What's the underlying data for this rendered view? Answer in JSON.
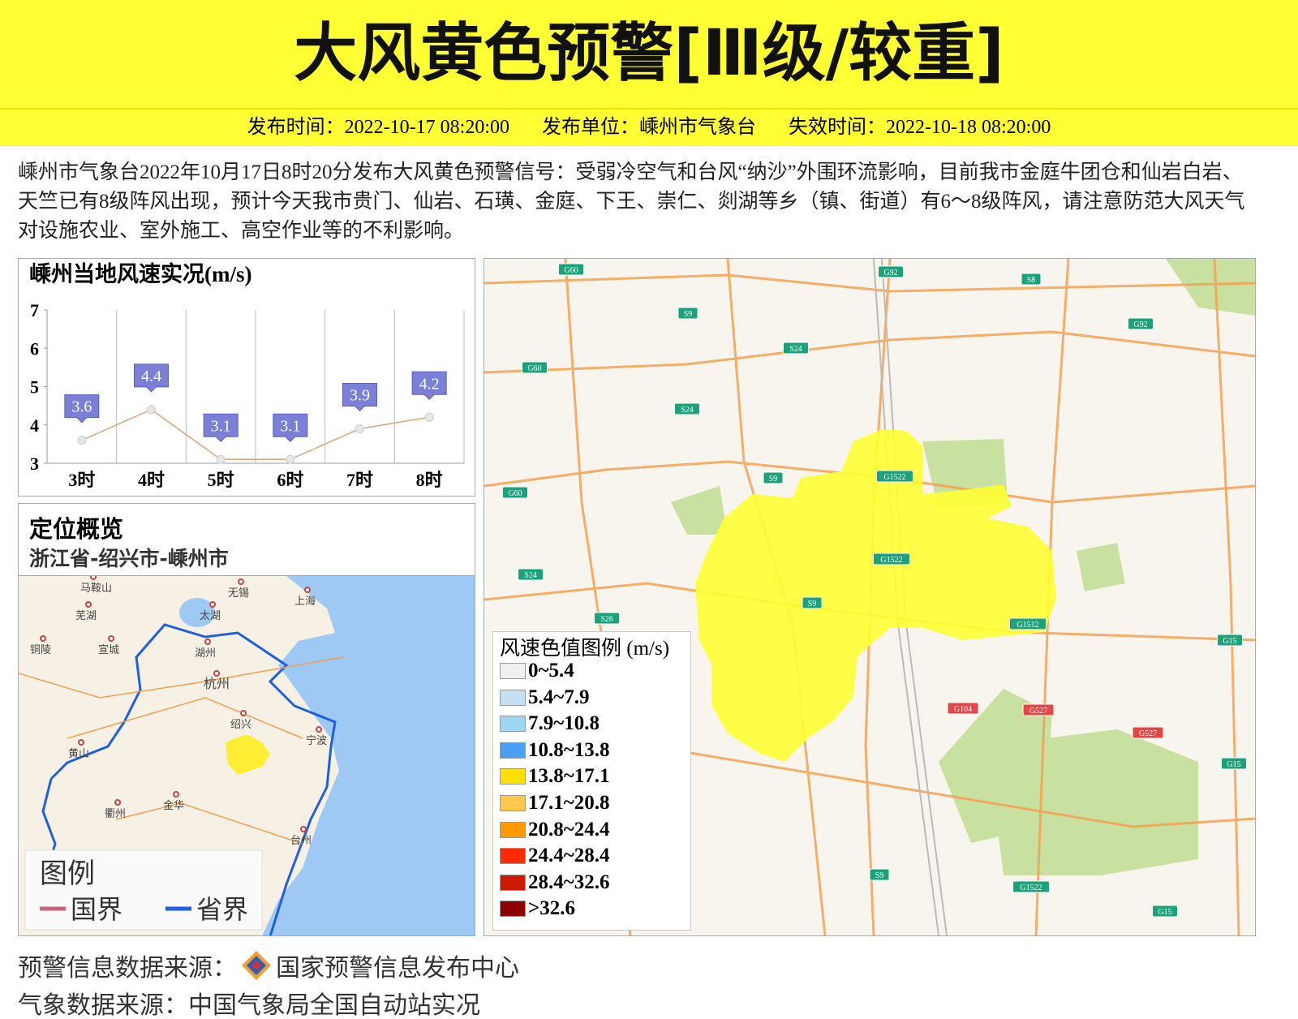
{
  "header": {
    "title": "大风黄色预警[Ⅲ级/较重]",
    "meta": [
      "发布时间：2022-10-17 08:20:00",
      "发布单位：嵊州市气象台",
      "失效时间：2022-10-18 08:20:00"
    ]
  },
  "description": "嵊州市气象台2022年10月17日8时20分发布大风黄色预警信号：受弱冷空气和台风“纳沙”外围环流影响，目前我市金庭牛团仓和仙岩白岩、天竺已有8级阵风出现，预计今天我市贵门、仙岩、石璜、金庭、下王、崇仁、剡湖等乡（镇、街道）有6～8级阵风，请注意防范大风天气对设施农业、室外施工、高空作业等的不利影响。",
  "chart_data": {
    "type": "line",
    "title": "嵊州当地风速实况(m/s)",
    "categories": [
      "3时",
      "4时",
      "5时",
      "6时",
      "7时",
      "8时"
    ],
    "values": [
      3.6,
      4.4,
      3.1,
      3.1,
      3.9,
      4.2
    ],
    "color": "#d9a47a",
    "label_color": "#7b7fd6",
    "ylim": [
      3,
      7
    ],
    "yticks": [
      3,
      4,
      5,
      6,
      7
    ],
    "grid": true
  },
  "location": {
    "title": "定位概览",
    "subtitle": "浙江省-绍兴市-嵊州市",
    "cities": [
      "马鞍山",
      "无锡",
      "芜湖",
      "太湖",
      "上海",
      "铜陵",
      "宣城",
      "湖州",
      "杭州",
      "绍兴",
      "宁波",
      "黄山",
      "金华",
      "衢州",
      "台州"
    ],
    "legend": {
      "title": "图例",
      "items": [
        {
          "name": "国界",
          "color": "#c9677a"
        },
        {
          "name": "省界",
          "color": "#1f5fe0"
        }
      ]
    }
  },
  "map": {
    "road_labels": [
      {
        "text": "G60",
        "color": "#1aa37a"
      },
      {
        "text": "G92",
        "color": "#1aa37a"
      },
      {
        "text": "S8",
        "color": "#1aa37a"
      },
      {
        "text": "S9",
        "color": "#1aa37a"
      },
      {
        "text": "G92",
        "color": "#1aa37a"
      },
      {
        "text": "S24",
        "color": "#1aa37a"
      },
      {
        "text": "G60",
        "color": "#1aa37a"
      },
      {
        "text": "S24",
        "color": "#1aa37a"
      },
      {
        "text": "S9",
        "color": "#1aa37a"
      },
      {
        "text": "G1522",
        "color": "#1aa37a"
      },
      {
        "text": "G60",
        "color": "#1aa37a"
      },
      {
        "text": "G1522",
        "color": "#1aa37a"
      },
      {
        "text": "S24",
        "color": "#1aa37a"
      },
      {
        "text": "S9",
        "color": "#1aa37a"
      },
      {
        "text": "S26",
        "color": "#1aa37a"
      },
      {
        "text": "G1512",
        "color": "#1aa37a"
      },
      {
        "text": "G15",
        "color": "#1aa37a"
      },
      {
        "text": "G104",
        "color": "#e64545"
      },
      {
        "text": "G527",
        "color": "#e64545"
      },
      {
        "text": "G527",
        "color": "#e64545"
      },
      {
        "text": "G15",
        "color": "#1aa37a"
      },
      {
        "text": "S9",
        "color": "#1aa37a"
      },
      {
        "text": "G1522",
        "color": "#1aa37a"
      },
      {
        "text": "G15",
        "color": "#1aa37a"
      }
    ],
    "legend": {
      "title": "风速色值图例 (m/s)",
      "items": [
        {
          "label": "0~5.4",
          "color": "#f0f0f0"
        },
        {
          "label": "5.4~7.9",
          "color": "#c5e0f3"
        },
        {
          "label": "7.9~10.8",
          "color": "#9ed5f5"
        },
        {
          "label": "10.8~13.8",
          "color": "#4a9ff5"
        },
        {
          "label": "13.8~17.1",
          "color": "#ffe000"
        },
        {
          "label": "17.1~20.8",
          "color": "#ffc84a"
        },
        {
          "label": "20.8~24.4",
          "color": "#ff9a00"
        },
        {
          "label": "24.4~28.4",
          "color": "#ff2a00"
        },
        {
          "label": "28.4~32.6",
          "color": "#cc1a00"
        },
        {
          "label": ">32.6",
          "color": "#8b0000"
        }
      ]
    }
  },
  "footer": {
    "warning_source_label": "预警信息数据来源：",
    "warning_source": "国家预警信息发布中心",
    "weather_source": "气象数据来源：中国气象局全国自动站实况"
  }
}
